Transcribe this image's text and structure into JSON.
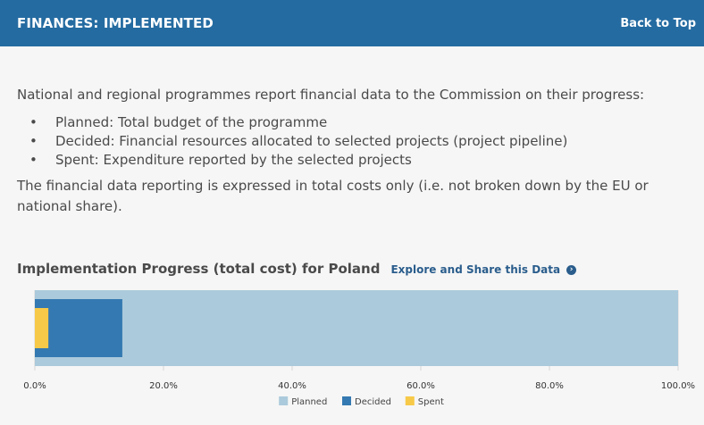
{
  "header": {
    "title": "FINANCES: IMPLEMENTED",
    "back_link": "Back to Top"
  },
  "intro": "National and regional programmes report financial data to the Commission on their progress:",
  "bullets": [
    "Planned: Total budget of the programme",
    "Decided: Financial resources allocated to selected projects (project pipeline)",
    "Spent: Expenditure reported by the selected projects"
  ],
  "note": "The financial data reporting is expressed in total costs only (i.e. not broken down by the EU or national share).",
  "chart_heading": {
    "title": "Implementation Progress (total cost) for Poland",
    "link": "Explore and Share this Data"
  },
  "chart_data": {
    "type": "bar",
    "orientation": "horizontal",
    "stacked": "overlaid",
    "xlim": [
      0,
      100
    ],
    "x_ticks": [
      "0.0%",
      "20.0%",
      "40.0%",
      "60.0%",
      "80.0%",
      "100.0%"
    ],
    "grid": true,
    "legend_position": "bottom",
    "series": [
      {
        "name": "Planned",
        "value": 100.0,
        "color": "#abcadb"
      },
      {
        "name": "Decided",
        "value": 13.6,
        "color": "#3479b1"
      },
      {
        "name": "Spent",
        "value": 2.1,
        "color": "#f7c948"
      }
    ]
  }
}
